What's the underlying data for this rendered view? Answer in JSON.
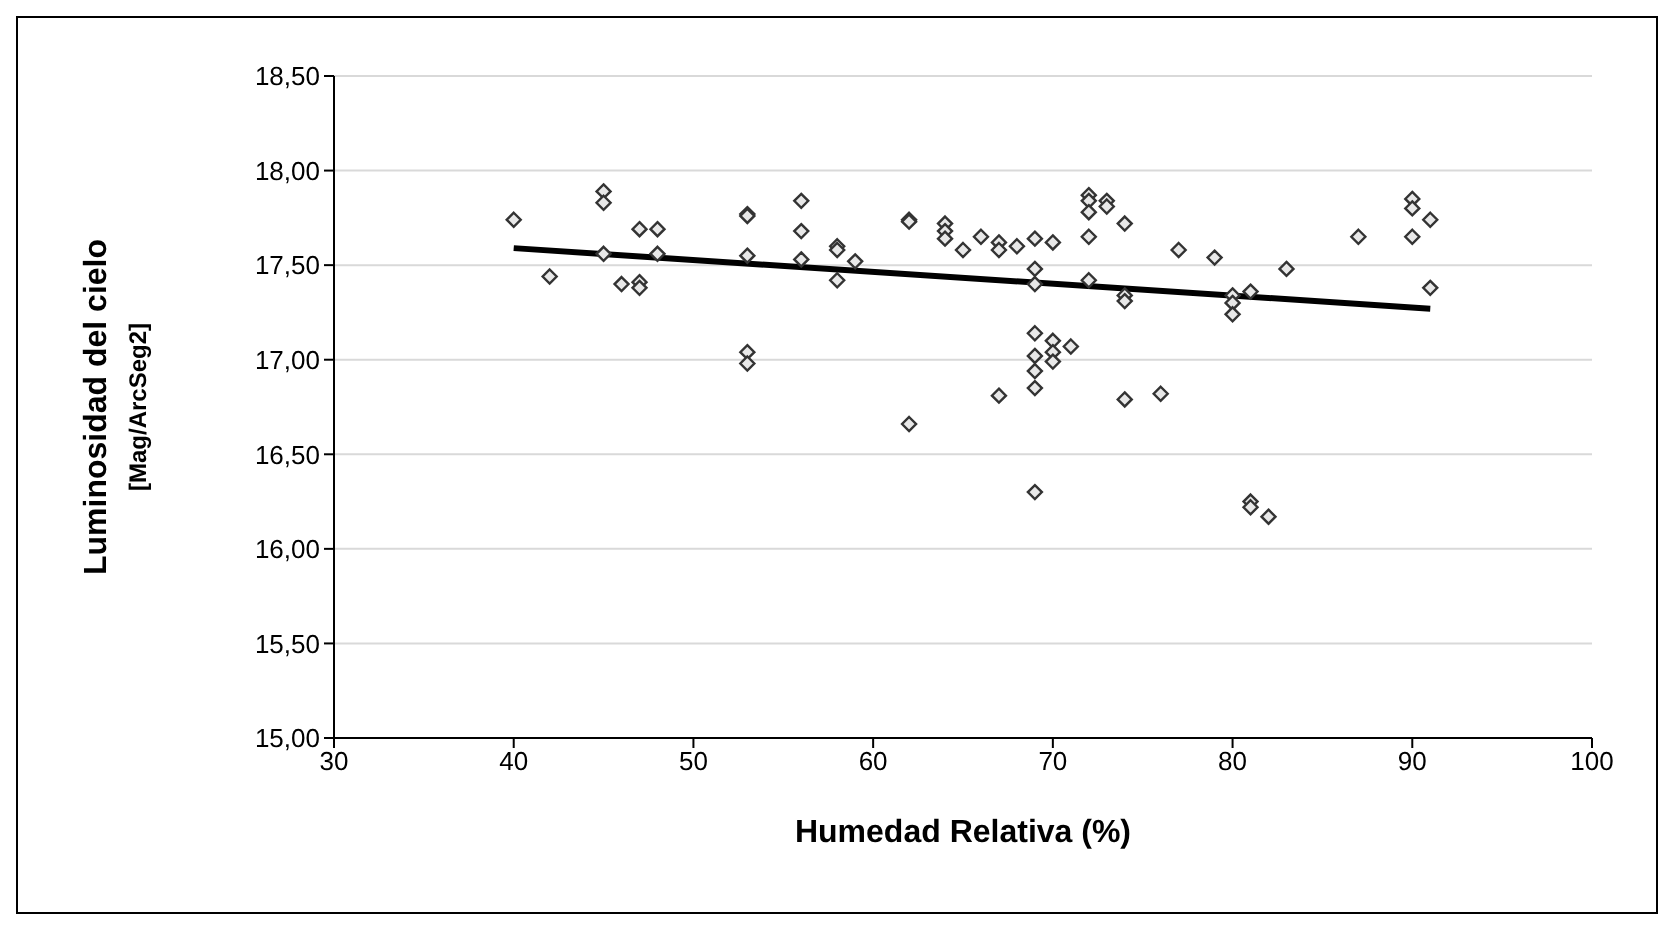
{
  "chart_data": {
    "type": "scatter",
    "xlabel": "Humedad Relativa (%)",
    "ylabel": "Luminosidad del cielo\n[Mag/ArcSeg2]",
    "xlim": [
      30,
      100
    ],
    "xticks": [
      30,
      40,
      50,
      60,
      70,
      80,
      90,
      100
    ],
    "ylim": [
      15,
      18.5
    ],
    "yticks": [
      {
        "value": 15,
        "label": "15,00"
      },
      {
        "value": 15.5,
        "label": "15,50"
      },
      {
        "value": 16,
        "label": "16,00"
      },
      {
        "value": 16.5,
        "label": "16,50"
      },
      {
        "value": 17,
        "label": "17,00"
      },
      {
        "value": 17.5,
        "label": "17,50"
      },
      {
        "value": 18,
        "label": "18,00"
      },
      {
        "value": 18.5,
        "label": "18,50"
      }
    ],
    "grid": "y",
    "marker": "diamond",
    "series": [
      {
        "color": "#333333",
        "x": [
          40,
          42,
          45,
          45,
          45,
          46,
          47,
          47,
          47,
          48,
          48,
          53,
          53,
          53,
          53,
          53,
          56,
          56,
          56,
          58,
          58,
          58,
          59,
          62,
          62,
          62,
          64,
          64,
          64,
          65,
          66,
          67,
          67,
          67,
          68,
          69,
          69,
          69,
          69,
          69,
          69,
          69,
          69,
          70,
          70,
          70,
          70,
          71,
          72,
          72,
          72,
          72,
          72,
          73,
          73,
          74,
          74,
          74,
          74,
          76,
          77,
          79,
          80,
          80,
          80,
          81,
          81,
          81,
          82,
          83,
          87,
          90,
          90,
          90,
          91,
          91
        ],
        "values": [
          17.74,
          17.44,
          17.89,
          17.83,
          17.56,
          17.4,
          17.69,
          17.41,
          17.38,
          17.69,
          17.56,
          17.77,
          17.76,
          17.55,
          17.04,
          16.98,
          17.84,
          17.68,
          17.53,
          17.6,
          17.58,
          17.42,
          17.52,
          16.66,
          17.74,
          17.73,
          17.72,
          17.68,
          17.64,
          17.58,
          17.65,
          17.62,
          17.58,
          16.81,
          17.6,
          17.64,
          17.48,
          17.4,
          16.94,
          16.85,
          16.3,
          17.14,
          17.02,
          17.62,
          17.1,
          17.04,
          16.99,
          17.07,
          17.87,
          17.84,
          17.78,
          17.65,
          17.42,
          17.84,
          17.81,
          17.72,
          17.34,
          17.31,
          16.79,
          16.82,
          17.58,
          17.54,
          17.34,
          17.3,
          17.24,
          17.36,
          16.25,
          16.22,
          16.17,
          17.48,
          17.65,
          17.85,
          17.8,
          17.65,
          17.74,
          17.38
        ]
      },
      {
        "type": "line",
        "marker": "none",
        "color": "#000000",
        "x": [
          40,
          91
        ],
        "values": [
          17.59,
          17.27
        ]
      }
    ]
  }
}
